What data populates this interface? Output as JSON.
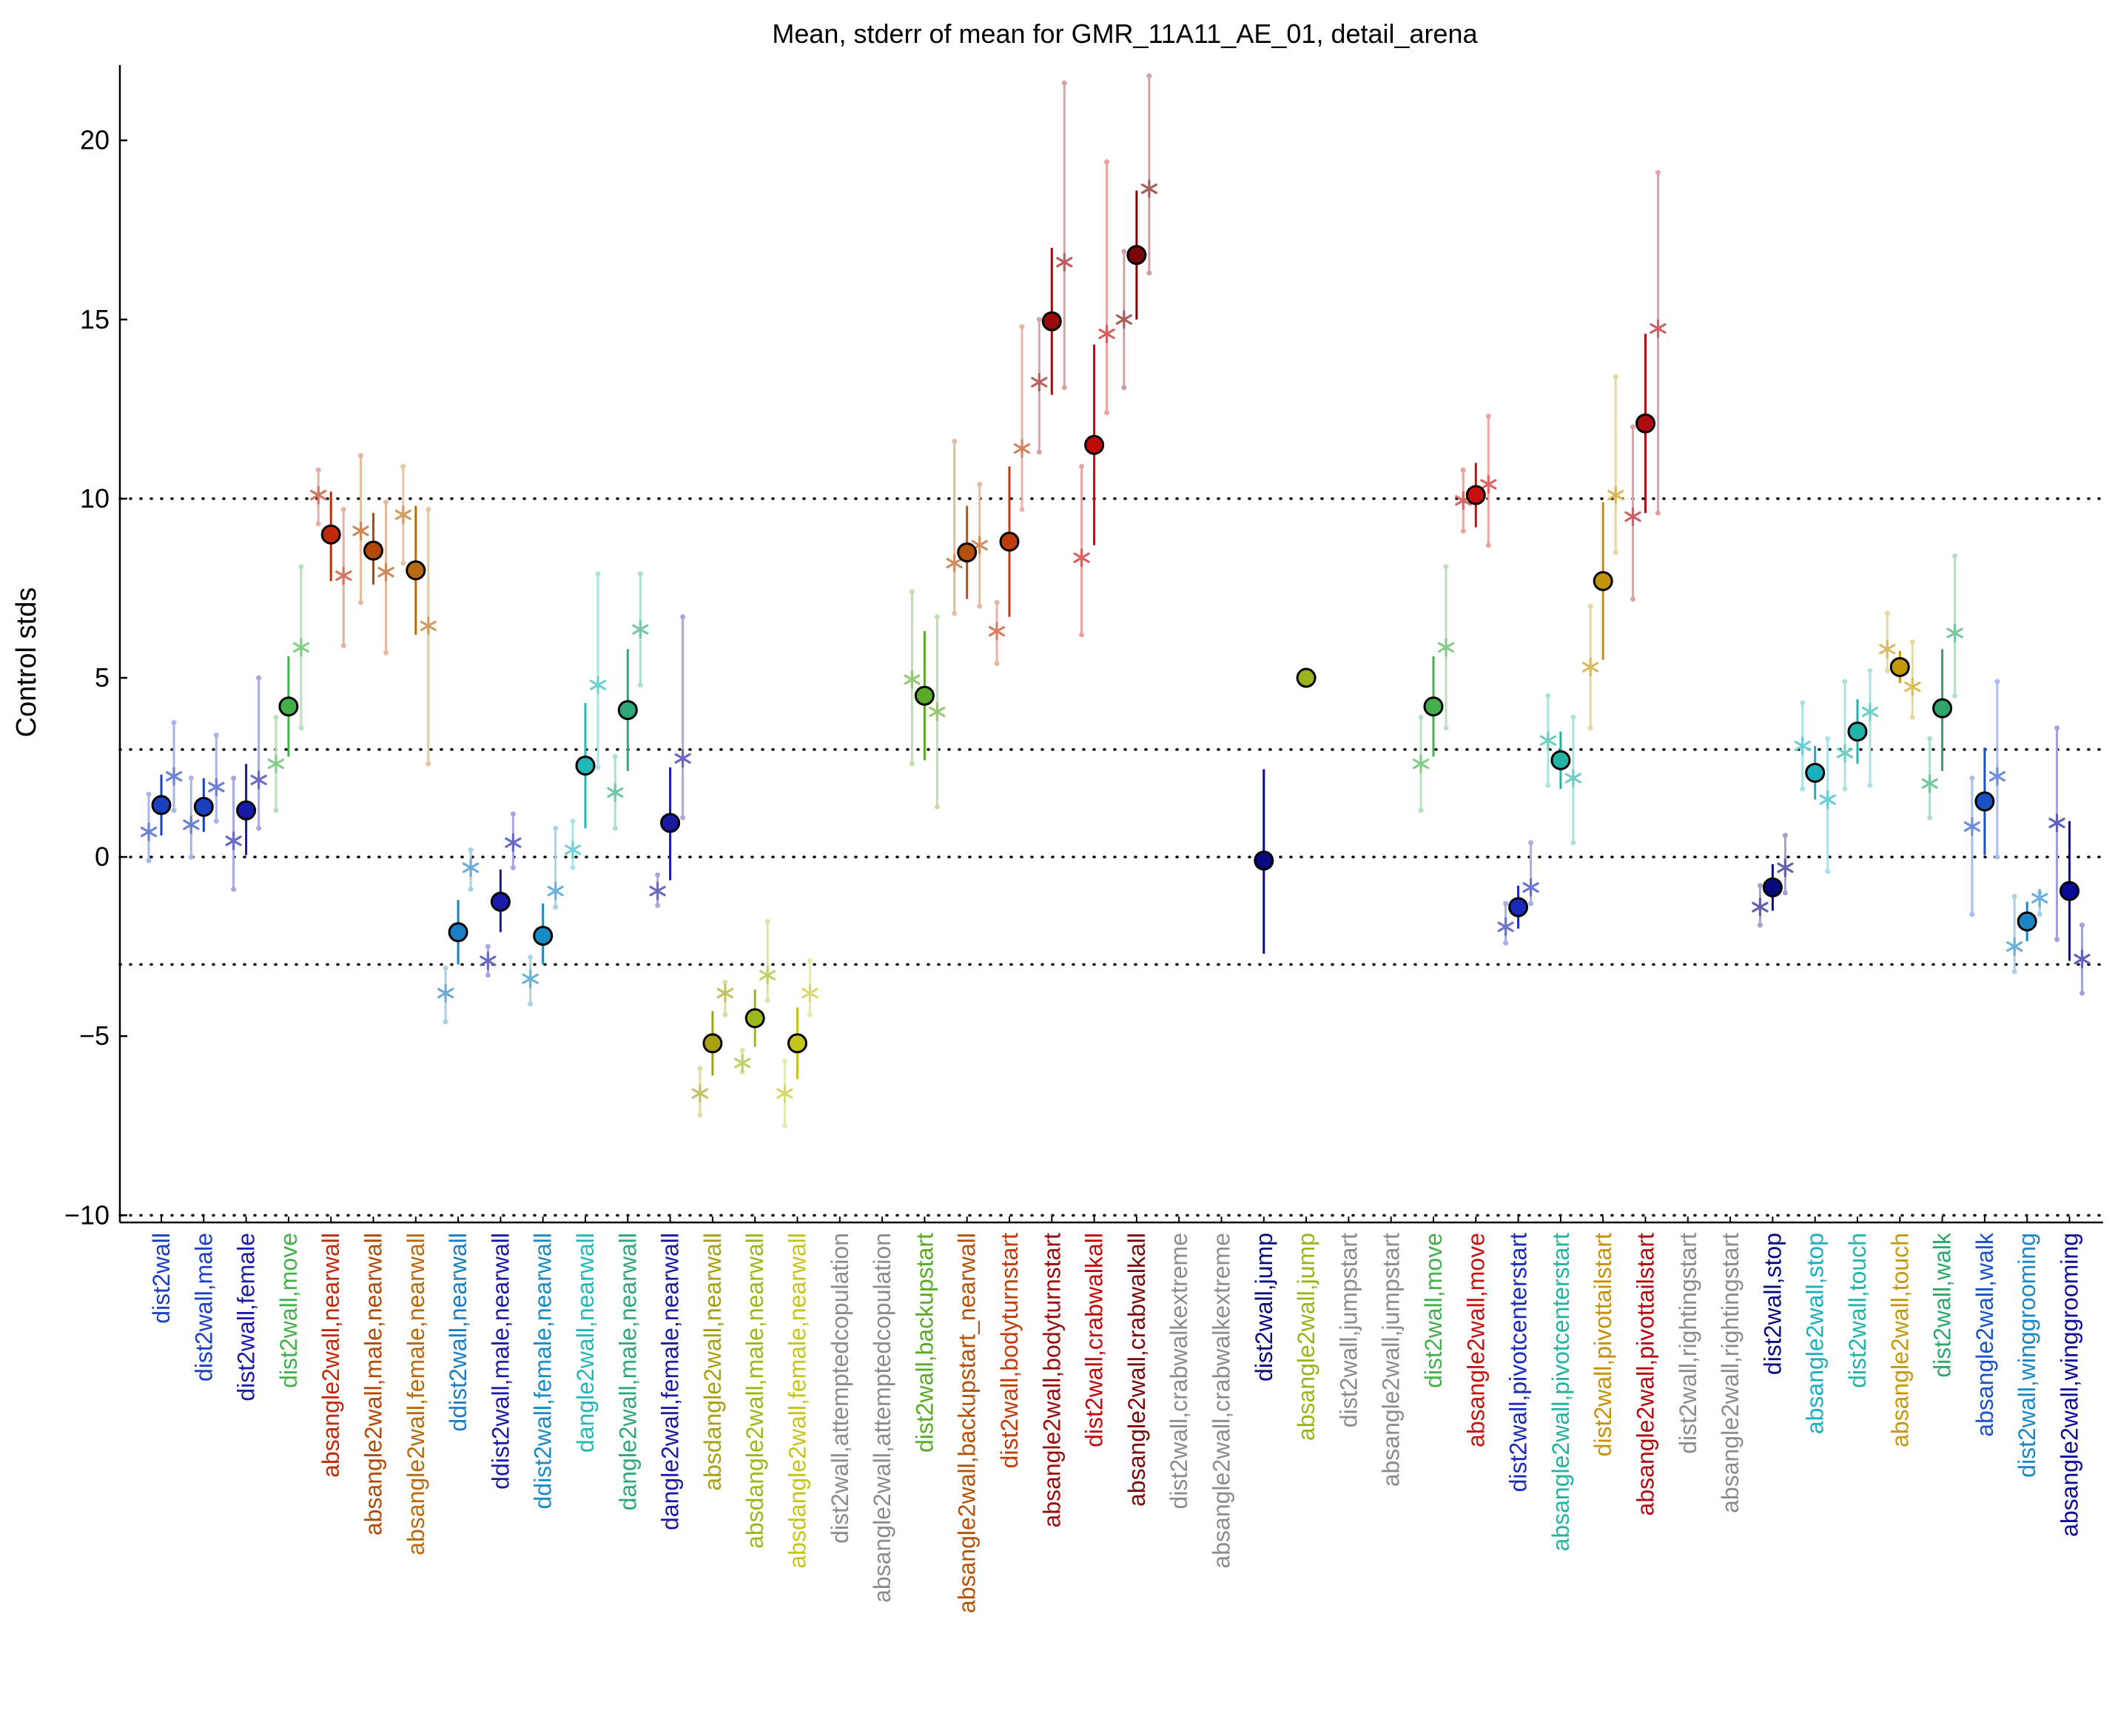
{
  "chart_data": {
    "type": "scatter",
    "title": "Mean, stderr of mean for GMR_11A11_AE_01, detail_arena",
    "xlabel": "",
    "ylabel": "Control stds",
    "ylim": [
      -10.2,
      22.1
    ],
    "yticks": [
      -10,
      -5,
      0,
      5,
      10,
      15,
      20
    ],
    "reference_lines": [
      -10,
      -3,
      0,
      3,
      10
    ],
    "grid": false,
    "legend": "none",
    "categories": [
      {
        "label": "dist2wall",
        "color": "#1a3fbf",
        "mean": 1.45,
        "lo": 0.6,
        "hi": 2.3,
        "stars": [
          0.7,
          2.25
        ],
        "stars_lo": [
          -0.1,
          1.3
        ],
        "stars_hi": [
          1.75,
          3.75
        ]
      },
      {
        "label": "dist2wall,male",
        "color": "#1a3fbf",
        "mean": 1.4,
        "lo": 0.7,
        "hi": 2.2,
        "stars": [
          0.9,
          1.95
        ],
        "stars_lo": [
          0.0,
          1.0
        ],
        "stars_hi": [
          2.2,
          3.4
        ]
      },
      {
        "label": "dist2wall,female",
        "color": "#1a1aa8",
        "mean": 1.3,
        "lo": 0.05,
        "hi": 2.6,
        "stars": [
          0.45,
          2.15
        ],
        "stars_lo": [
          -0.9,
          0.8
        ],
        "stars_hi": [
          2.2,
          5.0
        ]
      },
      {
        "label": "dist2wall,move",
        "color": "#44b04c",
        "mean": 4.2,
        "lo": 2.8,
        "hi": 5.6,
        "stars": [
          2.6,
          5.85
        ],
        "stars_lo": [
          1.3,
          3.6
        ],
        "stars_hi": [
          3.9,
          8.1
        ]
      },
      {
        "label": "absangle2wall,nearwall",
        "color": "#bf2a0a",
        "mean": 9.0,
        "lo": 7.7,
        "hi": 10.2,
        "stars": [
          10.1,
          7.85
        ],
        "stars_lo": [
          9.3,
          5.9
        ],
        "stars_hi": [
          10.8,
          9.7
        ]
      },
      {
        "label": "absangle2wall,male,nearwall",
        "color": "#b04a06",
        "mean": 8.55,
        "lo": 7.6,
        "hi": 9.6,
        "stars": [
          9.1,
          7.95
        ],
        "stars_lo": [
          7.1,
          5.7
        ],
        "stars_hi": [
          11.2,
          9.9
        ]
      },
      {
        "label": "absangle2wall,female,nearwall",
        "color": "#b86a0e",
        "mean": 8.0,
        "lo": 6.2,
        "hi": 9.8,
        "stars": [
          9.55,
          6.45
        ],
        "stars_lo": [
          8.2,
          2.6
        ],
        "stars_hi": [
          10.9,
          9.7
        ]
      },
      {
        "label": "ddist2wall,nearwall",
        "color": "#1a7ec4",
        "mean": -2.1,
        "lo": -3.0,
        "hi": -1.2,
        "stars": [
          -3.8,
          -0.3
        ],
        "stars_lo": [
          -4.6,
          -0.9
        ],
        "stars_hi": [
          -3.1,
          0.2
        ]
      },
      {
        "label": "ddist2wall,male,nearwall",
        "color": "#1a1aa8",
        "mean": -1.25,
        "lo": -2.1,
        "hi": -0.35,
        "stars": [
          -2.9,
          0.4
        ],
        "stars_lo": [
          -3.3,
          -0.3
        ],
        "stars_hi": [
          -2.5,
          1.2
        ]
      },
      {
        "label": "ddist2wall,female,nearwall",
        "color": "#1a8ac4",
        "mean": -2.2,
        "lo": -3.0,
        "hi": -1.3,
        "stars": [
          -3.4,
          -0.95
        ],
        "stars_lo": [
          -4.1,
          -1.4
        ],
        "stars_hi": [
          -2.8,
          0.8
        ]
      },
      {
        "label": "dangle2wall,nearwall",
        "color": "#22b8b8",
        "mean": 2.55,
        "lo": 0.8,
        "hi": 4.3,
        "stars": [
          0.2,
          4.8
        ],
        "stars_lo": [
          -0.3,
          2.5
        ],
        "stars_hi": [
          1.0,
          7.9
        ]
      },
      {
        "label": "dangle2wall,male,nearwall",
        "color": "#2ea87a",
        "mean": 4.1,
        "lo": 2.4,
        "hi": 5.8,
        "stars": [
          1.8,
          6.35
        ],
        "stars_lo": [
          0.8,
          4.8
        ],
        "stars_hi": [
          2.8,
          7.9
        ]
      },
      {
        "label": "dangle2wall,female,nearwall",
        "color": "#1a1aa0",
        "mean": 0.95,
        "lo": -0.65,
        "hi": 2.5,
        "stars": [
          -0.95,
          2.75
        ],
        "stars_lo": [
          -1.35,
          1.1
        ],
        "stars_hi": [
          -0.5,
          6.7
        ]
      },
      {
        "label": "absdangle2wall,nearwall",
        "color": "#a8a010",
        "mean": -5.2,
        "lo": -6.1,
        "hi": -4.3,
        "stars": [
          -6.6,
          -3.8
        ],
        "stars_lo": [
          -7.2,
          -4.4
        ],
        "stars_hi": [
          -5.9,
          -3.5
        ]
      },
      {
        "label": "absdangle2wall,male,nearwall",
        "color": "#9ab81c",
        "mean": -4.5,
        "lo": -5.3,
        "hi": -3.7,
        "stars": [
          -5.75,
          -3.3
        ],
        "stars_lo": [
          -6.0,
          -4.0
        ],
        "stars_hi": [
          -5.4,
          -1.8
        ]
      },
      {
        "label": "absdangle2wall,female,nearwall",
        "color": "#c4c41a",
        "mean": -5.2,
        "lo": -6.2,
        "hi": -4.2,
        "stars": [
          -6.6,
          -3.8
        ],
        "stars_lo": [
          -7.5,
          -4.4
        ],
        "stars_hi": [
          -5.7,
          -2.9
        ]
      },
      {
        "label": "dist2wall,attemptedcopulation",
        "color": "#8c8c8c",
        "mean": null
      },
      {
        "label": "absangle2wall,attemptedcopulation",
        "color": "#8c8c8c",
        "mean": null
      },
      {
        "label": "dist2wall,backupstart",
        "color": "#5aaa28",
        "mean": 4.5,
        "lo": 2.7,
        "hi": 6.3,
        "stars": [
          4.95,
          4.05
        ],
        "stars_lo": [
          2.6,
          1.4
        ],
        "stars_hi": [
          7.4,
          6.7
        ]
      },
      {
        "label": "absangle2wall,backupstart_nearwall",
        "color": "#b4520a",
        "mean": 8.5,
        "lo": 7.2,
        "hi": 9.8,
        "stars": [
          8.2,
          8.7
        ],
        "stars_lo": [
          6.8,
          7.0
        ],
        "stars_hi": [
          11.6,
          10.4
        ]
      },
      {
        "label": "dist2wall,bodyturnstart",
        "color": "#c03c0c",
        "mean": 8.8,
        "lo": 6.7,
        "hi": 10.9,
        "stars": [
          6.3,
          11.4
        ],
        "stars_lo": [
          5.4,
          9.7
        ],
        "stars_hi": [
          7.1,
          14.8
        ]
      },
      {
        "label": "absangle2wall,bodyturnstart",
        "color": "#9a0a0a",
        "mean": 14.95,
        "lo": 12.9,
        "hi": 17.0,
        "stars": [
          13.25,
          16.6
        ],
        "stars_lo": [
          11.3,
          13.1
        ],
        "stars_hi": [
          15.0,
          21.6
        ]
      },
      {
        "label": "dist2wall,crabwalkall",
        "color": "#c00a0a",
        "mean": 11.5,
        "lo": 8.7,
        "hi": 14.3,
        "stars": [
          8.35,
          14.6
        ],
        "stars_lo": [
          6.2,
          12.4
        ],
        "stars_hi": [
          10.9,
          19.4
        ]
      },
      {
        "label": "absangle2wall,crabwalkall",
        "color": "#7a0808",
        "mean": 16.8,
        "lo": 15.0,
        "hi": 18.6,
        "stars": [
          15.0,
          18.65
        ],
        "stars_lo": [
          13.1,
          16.3
        ],
        "stars_hi": [
          16.9,
          21.8
        ]
      },
      {
        "label": "dist2wall,crabwalkextreme",
        "color": "#8c8c8c",
        "mean": null
      },
      {
        "label": "absangle2wall,crabwalkextreme",
        "color": "#8c8c8c",
        "mean": null
      },
      {
        "label": "dist2wall,jump",
        "color": "#0a0a80",
        "mean": -0.1,
        "lo": -2.7,
        "hi": 2.45,
        "stars": [],
        "stars_lo": [],
        "stars_hi": []
      },
      {
        "label": "absangle2wall,jump",
        "color": "#9ab41a",
        "mean": 5.0,
        "lo": 4.85,
        "hi": 5.15,
        "stars": [],
        "stars_lo": [],
        "stars_hi": []
      },
      {
        "label": "dist2wall,jumpstart",
        "color": "#8c8c8c",
        "mean": null
      },
      {
        "label": "absangle2wall,jumpstart",
        "color": "#8c8c8c",
        "mean": null
      },
      {
        "label": "dist2wall,move",
        "color": "#44b04c",
        "mean": 4.2,
        "lo": 2.8,
        "hi": 5.6,
        "stars": [
          2.6,
          5.85
        ],
        "stars_lo": [
          1.3,
          3.6
        ],
        "stars_hi": [
          3.9,
          8.1
        ]
      },
      {
        "label": "absangle2wall,move",
        "color": "#c81010",
        "mean": 10.1,
        "lo": 9.2,
        "hi": 11.0,
        "stars": [
          9.95,
          10.4
        ],
        "stars_lo": [
          9.1,
          8.7
        ],
        "stars_hi": [
          10.8,
          12.3
        ]
      },
      {
        "label": "dist2wall,pivotcenterstart",
        "color": "#1a2ab8",
        "mean": -1.4,
        "lo": -2.0,
        "hi": -0.8,
        "stars": [
          -1.95,
          -0.85
        ],
        "stars_lo": [
          -2.4,
          -1.3
        ],
        "stars_hi": [
          -1.3,
          0.4
        ]
      },
      {
        "label": "absangle2wall,pivotcenterstart",
        "color": "#22b4a0",
        "mean": 2.7,
        "lo": 1.9,
        "hi": 3.5,
        "stars": [
          3.25,
          2.2
        ],
        "stars_lo": [
          2.0,
          0.4
        ],
        "stars_hi": [
          4.5,
          3.9
        ]
      },
      {
        "label": "dist2wall,pivottailstart",
        "color": "#c4920a",
        "mean": 7.7,
        "lo": 5.5,
        "hi": 9.9,
        "stars": [
          5.3,
          10.1
        ],
        "stars_lo": [
          3.6,
          8.5
        ],
        "stars_hi": [
          7.0,
          13.4
        ]
      },
      {
        "label": "absangle2wall,pivottailstart",
        "color": "#b00a10",
        "mean": 12.1,
        "lo": 9.6,
        "hi": 14.6,
        "stars": [
          9.5,
          14.75
        ],
        "stars_lo": [
          7.2,
          9.6
        ],
        "stars_hi": [
          12.0,
          19.1
        ]
      },
      {
        "label": "dist2wall,rightingstart",
        "color": "#8c8c8c",
        "mean": null
      },
      {
        "label": "absangle2wall,rightingstart",
        "color": "#8c8c8c",
        "mean": null
      },
      {
        "label": "dist2wall,stop",
        "color": "#0a0a80",
        "mean": -0.85,
        "lo": -1.5,
        "hi": -0.2,
        "stars": [
          -1.4,
          -0.3
        ],
        "stars_lo": [
          -1.9,
          -1.0
        ],
        "stars_hi": [
          -0.8,
          0.6
        ]
      },
      {
        "label": "absangle2wall,stop",
        "color": "#1ab0c0",
        "mean": 2.35,
        "lo": 1.6,
        "hi": 3.1,
        "stars": [
          3.1,
          1.6
        ],
        "stars_lo": [
          1.9,
          -0.4
        ],
        "stars_hi": [
          4.3,
          3.3
        ]
      },
      {
        "label": "dist2wall,touch",
        "color": "#22b4a8",
        "mean": 3.5,
        "lo": 2.6,
        "hi": 4.4,
        "stars": [
          2.9,
          4.05
        ],
        "stars_lo": [
          1.9,
          2.0
        ],
        "stars_hi": [
          4.9,
          5.2
        ]
      },
      {
        "label": "absangle2wall,touch",
        "color": "#c4980a",
        "mean": 5.3,
        "lo": 4.85,
        "hi": 5.75,
        "stars": [
          5.8,
          4.75
        ],
        "stars_lo": [
          5.2,
          3.9
        ],
        "stars_hi": [
          6.8,
          6.0
        ]
      },
      {
        "label": "dist2wall,walk",
        "color": "#2ea86a",
        "mean": 4.15,
        "lo": 2.4,
        "hi": 5.8,
        "stars": [
          2.05,
          6.25
        ],
        "stars_lo": [
          1.1,
          4.5
        ],
        "stars_hi": [
          3.3,
          8.4
        ]
      },
      {
        "label": "absangle2wall,walk",
        "color": "#1a52c8",
        "mean": 1.55,
        "lo": 0.05,
        "hi": 3.05,
        "stars": [
          0.85,
          2.25
        ],
        "stars_lo": [
          -1.6,
          0.0
        ],
        "stars_hi": [
          2.2,
          4.9
        ]
      },
      {
        "label": "dist2wall,winggrooming",
        "color": "#1a86c4",
        "mean": -1.8,
        "lo": -2.35,
        "hi": -1.25,
        "stars": [
          -2.5,
          -1.15
        ],
        "stars_lo": [
          -3.2,
          -1.6
        ],
        "stars_hi": [
          -1.1,
          -1.0
        ]
      },
      {
        "label": "absangle2wall,winggrooming",
        "color": "#0a0a98",
        "mean": -0.95,
        "lo": -2.9,
        "hi": 1.0,
        "stars": [
          0.95,
          -2.85
        ],
        "stars_lo": [
          -2.3,
          -3.8
        ],
        "stars_hi": [
          3.6,
          -1.9
        ]
      }
    ]
  }
}
